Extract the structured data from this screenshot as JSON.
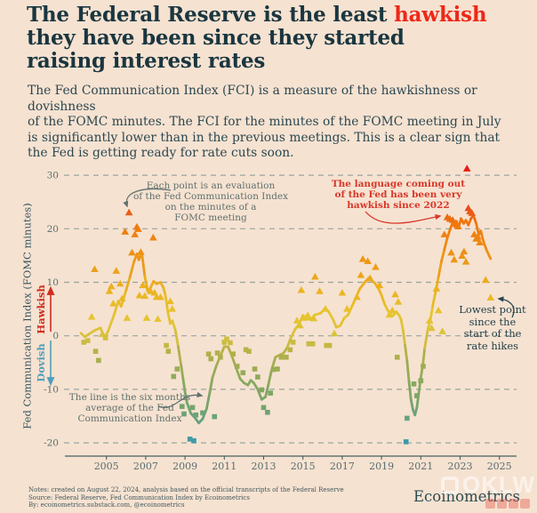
{
  "title": {
    "line1_pre": "The Federal Reserve is the least ",
    "line1_highlight": "hawkish",
    "line2": "they have been since they started",
    "line3": "raising interest rates"
  },
  "subtitle": "The Fed Communication Index (FCI) is a measure of the hawkishness or dovishness\nof the FOMC minutes. The FCI for the minutes of the FOMC meeting in July\nis significantly lower than in the previous meetings. This is a clear sign that\nthe Fed is getting ready for rate cuts soon.",
  "chart_data": {
    "type": "line",
    "title": "",
    "xlabel": "",
    "ylabel": "Fed Communication Index (FOMC minutes)",
    "x_ticks": [
      2005,
      2007,
      2009,
      2011,
      2013,
      2015,
      2017,
      2019,
      2021,
      2023,
      2025
    ],
    "y_ticks": [
      30,
      20,
      10,
      0,
      -10,
      -20
    ],
    "x_range": [
      2003.4,
      2025.6
    ],
    "y_range": [
      -22.5,
      33
    ],
    "grid": "dashed-horizontal",
    "direction_labels": {
      "hawkish": "Hawkish",
      "dovish": "Dovish"
    },
    "colors": {
      "background": "#f6e2d1",
      "gridline": "#98a49e",
      "axis": "#44605f",
      "tick_text": "#5a6e6e",
      "hawkish": "#cf2c1e",
      "dovish": "#4f9fbc",
      "scale_stops": [
        [
          -21,
          "#2e96b8"
        ],
        [
          -17.5,
          "#5ba18e"
        ],
        [
          -13,
          "#74a46c"
        ],
        [
          -8,
          "#8caa5b"
        ],
        [
          -3,
          "#b5b148"
        ],
        [
          0,
          "#d8c23c"
        ],
        [
          4,
          "#e7c52f"
        ],
        [
          9,
          "#ebb120"
        ],
        [
          13,
          "#ec9d19"
        ],
        [
          17,
          "#ee8a12"
        ],
        [
          21,
          "#f0780c"
        ],
        [
          22.8,
          "#ea5f17"
        ],
        [
          24.5,
          "#e43a20"
        ],
        [
          32,
          "#e5190e"
        ]
      ]
    },
    "series": [
      {
        "name": "six-month average of the Fed Communication Index",
        "type": "line",
        "points": [
          [
            2003.7,
            0.5
          ],
          [
            2003.9,
            -0.2
          ],
          [
            2004.1,
            0.3
          ],
          [
            2004.4,
            1.0
          ],
          [
            2004.7,
            1.5
          ],
          [
            2004.9,
            -0.5
          ],
          [
            2005.1,
            1.0
          ],
          [
            2005.4,
            4.0
          ],
          [
            2005.6,
            6.5
          ],
          [
            2005.75,
            5.5
          ],
          [
            2006.0,
            8.5
          ],
          [
            2006.2,
            11.0
          ],
          [
            2006.4,
            13.8
          ],
          [
            2006.55,
            15.3
          ],
          [
            2006.65,
            14.2
          ],
          [
            2006.8,
            15.5
          ],
          [
            2006.95,
            11.2
          ],
          [
            2007.1,
            8.3
          ],
          [
            2007.25,
            9.0
          ],
          [
            2007.4,
            10.2
          ],
          [
            2007.55,
            9.7
          ],
          [
            2007.75,
            10.0
          ],
          [
            2007.9,
            9.0
          ],
          [
            2008.0,
            7.6
          ],
          [
            2008.15,
            4.0
          ],
          [
            2008.25,
            2.3
          ],
          [
            2008.35,
            2.8
          ],
          [
            2008.5,
            1.2
          ],
          [
            2008.65,
            -2.0
          ],
          [
            2008.8,
            -5.5
          ],
          [
            2008.9,
            -8.0
          ],
          [
            2009.0,
            -10.5
          ],
          [
            2009.1,
            -12.5
          ],
          [
            2009.3,
            -14.5
          ],
          [
            2009.5,
            -15.3
          ],
          [
            2009.7,
            -16.3
          ],
          [
            2009.9,
            -15.5
          ],
          [
            2010.1,
            -13.6
          ],
          [
            2010.25,
            -10.8
          ],
          [
            2010.4,
            -7.8
          ],
          [
            2010.6,
            -5.5
          ],
          [
            2010.8,
            -3.8
          ],
          [
            2011.0,
            -2.0
          ],
          [
            2011.2,
            -2.1
          ],
          [
            2011.4,
            -3.9
          ],
          [
            2011.6,
            -6.0
          ],
          [
            2011.8,
            -8.0
          ],
          [
            2012.0,
            -8.8
          ],
          [
            2012.2,
            -9.2
          ],
          [
            2012.35,
            -8.3
          ],
          [
            2012.5,
            -8.8
          ],
          [
            2012.7,
            -10.0
          ],
          [
            2012.9,
            -11.9
          ],
          [
            2013.1,
            -11.4
          ],
          [
            2013.25,
            -9.0
          ],
          [
            2013.4,
            -6.5
          ],
          [
            2013.6,
            -4.0
          ],
          [
            2013.8,
            -3.6
          ],
          [
            2014.0,
            -3.3
          ],
          [
            2014.2,
            -2.2
          ],
          [
            2014.4,
            -0.3
          ],
          [
            2014.6,
            1.2
          ],
          [
            2014.8,
            2.2
          ],
          [
            2015.0,
            3.8
          ],
          [
            2015.2,
            3.2
          ],
          [
            2015.4,
            3.0
          ],
          [
            2015.6,
            3.9
          ],
          [
            2015.9,
            4.2
          ],
          [
            2016.1,
            5.0
          ],
          [
            2016.3,
            4.6
          ],
          [
            2016.55,
            2.9
          ],
          [
            2016.7,
            1.6
          ],
          [
            2016.9,
            1.9
          ],
          [
            2017.1,
            3.3
          ],
          [
            2017.3,
            3.9
          ],
          [
            2017.5,
            5.5
          ],
          [
            2017.7,
            7.2
          ],
          [
            2017.9,
            8.8
          ],
          [
            2018.15,
            10.0
          ],
          [
            2018.35,
            10.8
          ],
          [
            2018.5,
            10.3
          ],
          [
            2018.65,
            9.9
          ],
          [
            2018.85,
            8.8
          ],
          [
            2019.0,
            7.6
          ],
          [
            2019.15,
            6.0
          ],
          [
            2019.3,
            4.9
          ],
          [
            2019.45,
            4.0
          ],
          [
            2019.6,
            3.8
          ],
          [
            2019.75,
            4.5
          ],
          [
            2019.9,
            3.8
          ],
          [
            2020.0,
            3.0
          ],
          [
            2020.1,
            1.0
          ],
          [
            2020.2,
            -1.8
          ],
          [
            2020.3,
            -4.6
          ],
          [
            2020.4,
            -8.5
          ],
          [
            2020.5,
            -12.0
          ],
          [
            2020.6,
            -13.8
          ],
          [
            2020.7,
            -14.8
          ],
          [
            2020.8,
            -13.4
          ],
          [
            2020.9,
            -10.6
          ],
          [
            2021.0,
            -7.8
          ],
          [
            2021.1,
            -5.6
          ],
          [
            2021.2,
            -2.3
          ],
          [
            2021.35,
            1.0
          ],
          [
            2021.5,
            3.3
          ],
          [
            2021.6,
            5.5
          ],
          [
            2021.75,
            8.2
          ],
          [
            2021.9,
            11.0
          ],
          [
            2022.05,
            13.9
          ],
          [
            2022.2,
            16.1
          ],
          [
            2022.35,
            18.3
          ],
          [
            2022.5,
            20.0
          ],
          [
            2022.62,
            21.1
          ],
          [
            2022.72,
            20.4
          ],
          [
            2022.82,
            21.4
          ],
          [
            2022.92,
            20.2
          ],
          [
            2023.05,
            21.9
          ],
          [
            2023.18,
            21.0
          ],
          [
            2023.3,
            21.6
          ],
          [
            2023.42,
            20.7
          ],
          [
            2023.55,
            21.9
          ],
          [
            2023.68,
            22.5
          ],
          [
            2023.82,
            21.0
          ],
          [
            2023.95,
            18.9
          ],
          [
            2024.05,
            19.6
          ],
          [
            2024.2,
            17.5
          ],
          [
            2024.35,
            16.0
          ],
          [
            2024.55,
            14.4
          ]
        ]
      },
      {
        "name": "FCI evaluation per FOMC meeting minutes",
        "type": "scatter",
        "marker_rule": "triangle if value >= 0 (hawkish), square if value < 0 (dovish)",
        "points": [
          [
            2003.85,
            -1.2
          ],
          [
            2004.05,
            -0.9
          ],
          [
            2004.25,
            3.5
          ],
          [
            2004.4,
            12.4
          ],
          [
            2004.45,
            -2.9
          ],
          [
            2004.6,
            -4.6
          ],
          [
            2004.8,
            0.3
          ],
          [
            2004.95,
            -0.4
          ],
          [
            2005.15,
            8.3
          ],
          [
            2005.25,
            9.2
          ],
          [
            2005.35,
            6.0
          ],
          [
            2005.5,
            12.1
          ],
          [
            2005.7,
            9.7
          ],
          [
            2005.8,
            6.9
          ],
          [
            2005.95,
            19.4
          ],
          [
            2006.05,
            3.3
          ],
          [
            2006.15,
            23.0
          ],
          [
            2006.3,
            15.5
          ],
          [
            2006.45,
            18.9
          ],
          [
            2006.55,
            20.3
          ],
          [
            2006.62,
            19.9
          ],
          [
            2006.68,
            7.5
          ],
          [
            2006.75,
            15.6
          ],
          [
            2006.85,
            9.4
          ],
          [
            2006.95,
            7.4
          ],
          [
            2007.05,
            3.3
          ],
          [
            2007.25,
            8.3
          ],
          [
            2007.38,
            18.3
          ],
          [
            2007.45,
            8.0
          ],
          [
            2007.55,
            7.2
          ],
          [
            2007.62,
            3.1
          ],
          [
            2007.75,
            7.2
          ],
          [
            2008.05,
            -1.8
          ],
          [
            2008.15,
            -2.9
          ],
          [
            2008.25,
            6.4
          ],
          [
            2008.35,
            5.0
          ],
          [
            2008.42,
            -7.6
          ],
          [
            2008.6,
            -6.2
          ],
          [
            2008.85,
            -13.2
          ],
          [
            2008.95,
            -14.6
          ],
          [
            2009.25,
            -19.3
          ],
          [
            2009.38,
            -13.4
          ],
          [
            2009.45,
            -19.6
          ],
          [
            2009.55,
            -14.8
          ],
          [
            2009.9,
            -14.4
          ],
          [
            2010.2,
            -3.4
          ],
          [
            2010.32,
            -4.3
          ],
          [
            2010.5,
            -15.1
          ],
          [
            2010.65,
            -3.2
          ],
          [
            2010.8,
            -4.0
          ],
          [
            2011.0,
            -1.2
          ],
          [
            2011.12,
            -0.6
          ],
          [
            2011.3,
            -1.3
          ],
          [
            2011.45,
            -3.4
          ],
          [
            2011.65,
            -5.7
          ],
          [
            2011.95,
            -6.9
          ],
          [
            2012.1,
            -2.6
          ],
          [
            2012.25,
            -2.9
          ],
          [
            2012.55,
            -6.2
          ],
          [
            2012.7,
            -7.7
          ],
          [
            2012.9,
            -10.1
          ],
          [
            2013.0,
            -13.4
          ],
          [
            2013.2,
            -14.3
          ],
          [
            2013.35,
            -10.7
          ],
          [
            2013.5,
            -6.3
          ],
          [
            2013.7,
            -6.2
          ],
          [
            2013.9,
            -4.0
          ],
          [
            2014.15,
            -4.0
          ],
          [
            2014.35,
            -2.6
          ],
          [
            2014.5,
            -1.2
          ],
          [
            2014.7,
            2.8
          ],
          [
            2014.85,
            1.9
          ],
          [
            2014.92,
            8.5
          ],
          [
            2015.05,
            3.3
          ],
          [
            2015.25,
            3.8
          ],
          [
            2015.3,
            -1.5
          ],
          [
            2015.5,
            -1.5
          ],
          [
            2015.55,
            3.2
          ],
          [
            2015.62,
            11.0
          ],
          [
            2015.85,
            8.3
          ],
          [
            2016.15,
            5.0
          ],
          [
            2016.2,
            -1.8
          ],
          [
            2016.35,
            -1.8
          ],
          [
            2016.6,
            0.4
          ],
          [
            2017.0,
            8.0
          ],
          [
            2017.25,
            5.0
          ],
          [
            2017.75,
            7.2
          ],
          [
            2017.95,
            11.3
          ],
          [
            2018.05,
            14.3
          ],
          [
            2018.3,
            13.9
          ],
          [
            2018.42,
            10.7
          ],
          [
            2018.7,
            12.8
          ],
          [
            2018.9,
            9.4
          ],
          [
            2019.4,
            3.9
          ],
          [
            2019.55,
            4.7
          ],
          [
            2019.7,
            7.7
          ],
          [
            2019.8,
            -4.0
          ],
          [
            2019.85,
            6.3
          ],
          [
            2020.25,
            -19.8
          ],
          [
            2020.3,
            -15.4
          ],
          [
            2020.65,
            -9.0
          ],
          [
            2020.8,
            -11.2
          ],
          [
            2021.0,
            -8.4
          ],
          [
            2021.12,
            -5.7
          ],
          [
            2021.45,
            2.8
          ],
          [
            2021.55,
            1.4
          ],
          [
            2021.8,
            8.8
          ],
          [
            2021.9,
            4.7
          ],
          [
            2022.1,
            0.8
          ],
          [
            2022.2,
            18.9
          ],
          [
            2022.35,
            22.1
          ],
          [
            2022.48,
            21.8
          ],
          [
            2022.55,
            15.5
          ],
          [
            2022.62,
            21.6
          ],
          [
            2022.7,
            14.2
          ],
          [
            2022.78,
            21.0
          ],
          [
            2022.9,
            20.4
          ],
          [
            2023.1,
            14.9
          ],
          [
            2023.2,
            15.7
          ],
          [
            2023.3,
            13.8
          ],
          [
            2023.35,
            31.2
          ],
          [
            2023.42,
            23.8
          ],
          [
            2023.5,
            23.2
          ],
          [
            2023.6,
            22.9
          ],
          [
            2023.72,
            18.9
          ],
          [
            2023.82,
            18.1
          ],
          [
            2023.9,
            18.5
          ],
          [
            2024.0,
            17.4
          ],
          [
            2024.3,
            10.4
          ],
          [
            2024.55,
            7.1
          ]
        ]
      }
    ],
    "annotations": {
      "each_point": "Each point is an evaluation\nof the Fed Communication Index\non the minutes of a\nFOMC meeting",
      "language": "The language coming out\nof the Fed has been very\nhawkish since 2022",
      "lowest": "Lowest point\nsince the\nstart of the\nrate hikes",
      "line_avg": "The line is the six months\naverage of the Fed\nCommunication Index"
    }
  },
  "footer": {
    "notes": "Notes: created on August 22, 2024, analysis based on the official transcripts of the Federal Reserve\nSource: Federal Reserve, Fed Communication Index by Ecoinometrics\nBy: ecoinometrics.substack.com, @ecoinometrics",
    "logo": "Ecoinometrics"
  },
  "watermark": {
    "text": "OKLW"
  }
}
